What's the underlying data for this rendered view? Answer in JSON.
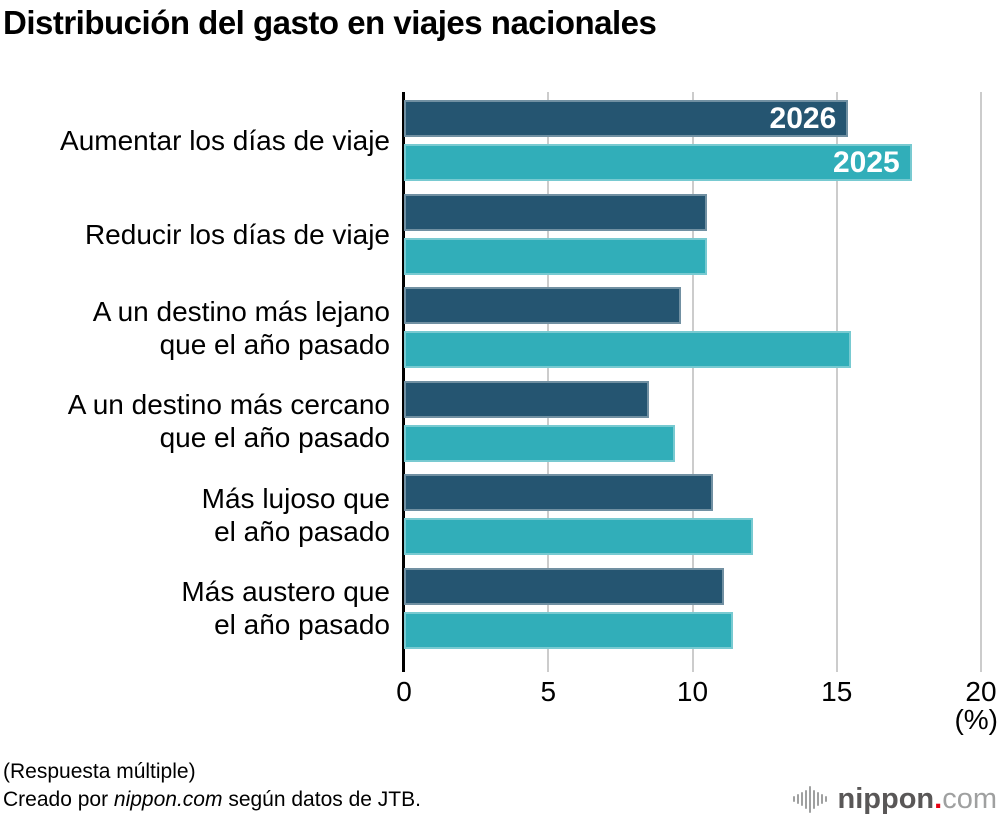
{
  "title": "Distribución del gasto en viajes nacionales",
  "chart_data": {
    "type": "bar",
    "orientation": "horizontal",
    "title": "Distribución del gasto en viajes nacionales",
    "categories": [
      [
        "Aumentar los días de viaje"
      ],
      [
        "Reducir los días de viaje"
      ],
      [
        "A un destino más lejano",
        "que el año pasado"
      ],
      [
        "A un destino más cercano",
        "que el año pasado"
      ],
      [
        "Más lujoso que",
        "el año pasado"
      ],
      [
        "Más austero que",
        "el año pasado"
      ]
    ],
    "series": [
      {
        "name": "2026",
        "color": "#255571",
        "values": [
          15.4,
          10.5,
          9.6,
          8.5,
          10.7,
          11.1
        ]
      },
      {
        "name": "2025",
        "color": "#31AEB9",
        "values": [
          17.6,
          10.5,
          15.5,
          9.4,
          12.1,
          11.4
        ]
      }
    ],
    "xlabel": "(%)",
    "xlim": [
      0,
      20
    ],
    "xticks": [
      0,
      5,
      10,
      15,
      20
    ],
    "grid": true,
    "legend_position": "inside-first-group-bars"
  },
  "colors": {
    "axis": "#000000",
    "grid": "#cccccc",
    "logo_dark": "#595757",
    "logo_light": "#9FA0A0",
    "logo_red": "#E60012"
  },
  "footer": {
    "note": "(Respuesta múltiple)",
    "credit_prefix": "Creado por ",
    "credit_source": "nippon.com",
    "credit_suffix": " según datos de JTB."
  },
  "logo": {
    "brand": "nippon",
    "dot": ".",
    "tld": "com",
    "icon": "soundwave-icon"
  }
}
